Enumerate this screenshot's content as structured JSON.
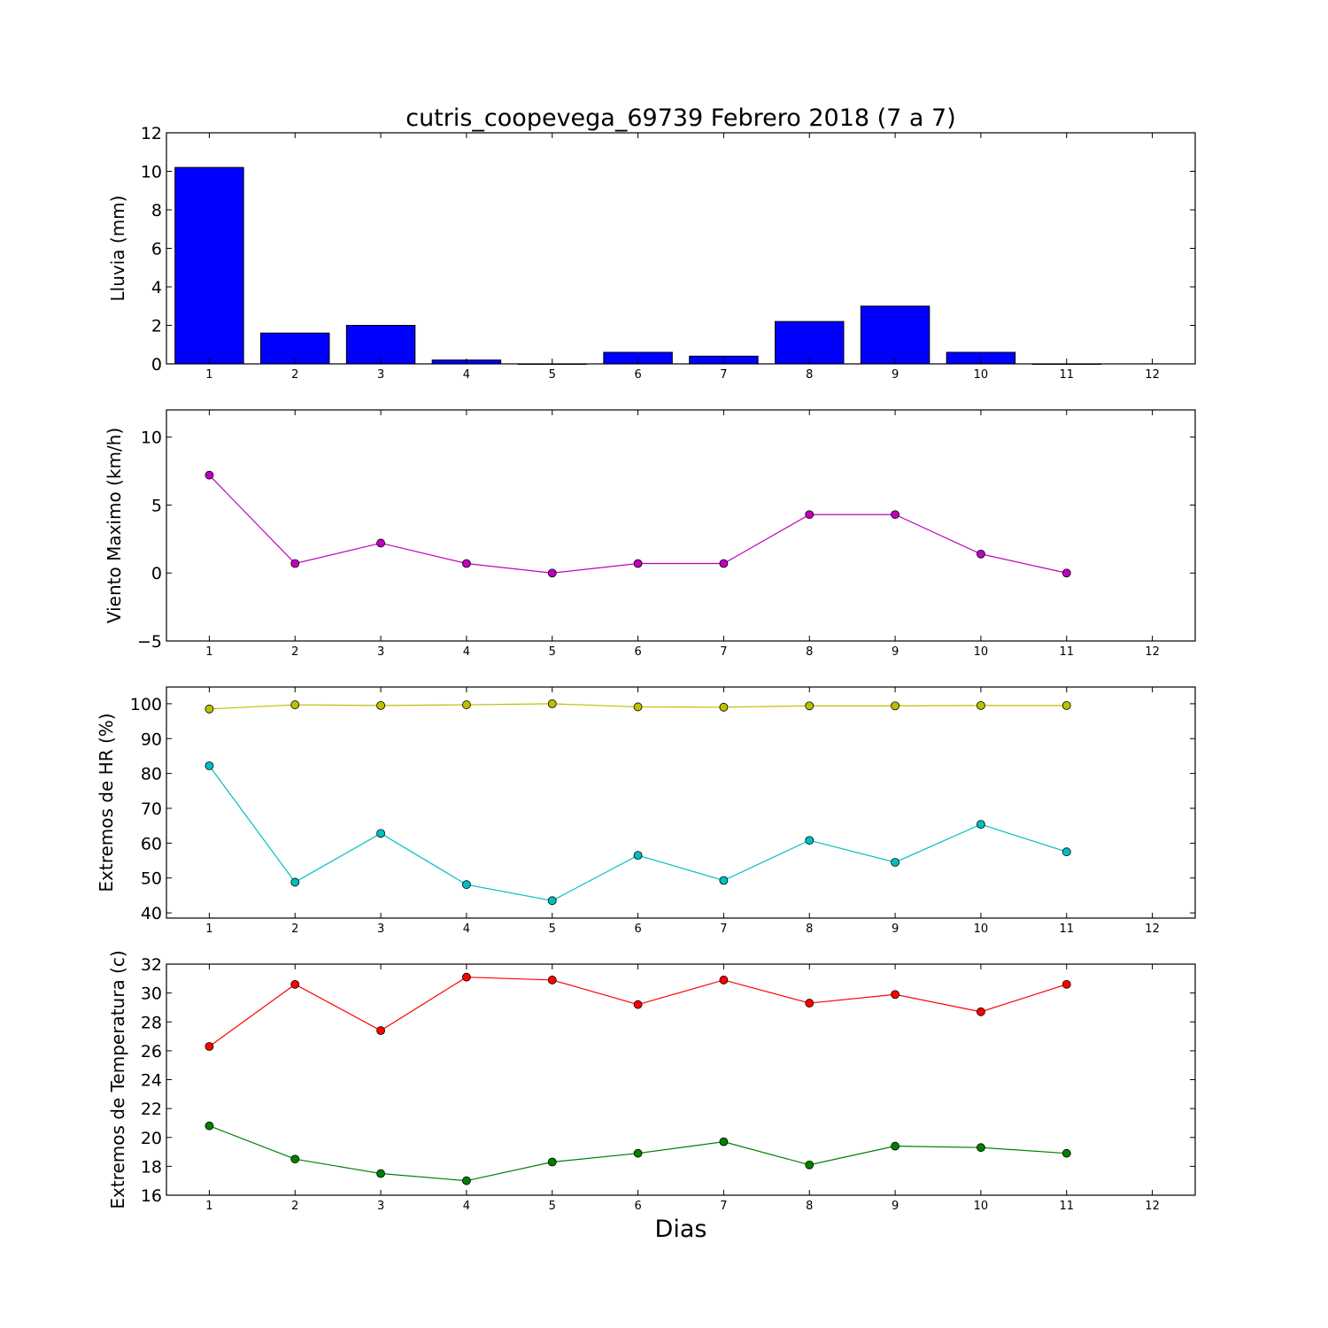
{
  "figure": {
    "title": "cutris_coopevega_69739 Febrero 2018  (7 a 7)",
    "xlabel": "Dias"
  },
  "chart_data": [
    {
      "type": "bar",
      "ylabel": "Lluvia (mm)",
      "xlim": [
        0.5,
        12.5
      ],
      "ylim": [
        0,
        12
      ],
      "yticks": [
        0,
        2,
        4,
        6,
        8,
        10,
        12
      ],
      "xticks": [
        1,
        2,
        3,
        4,
        5,
        6,
        7,
        8,
        9,
        10,
        11,
        12
      ],
      "grid": false,
      "series": [
        {
          "color": "#0000ff",
          "x": [
            1,
            2,
            3,
            4,
            5,
            6,
            7,
            8,
            9,
            10,
            11
          ],
          "values": [
            10.2,
            1.6,
            2.0,
            0.2,
            0.0,
            0.6,
            0.4,
            2.2,
            3.0,
            0.6,
            0.0
          ]
        }
      ]
    },
    {
      "type": "line",
      "ylabel": "Viento Maximo (km/h)",
      "xlim": [
        0.5,
        12.5
      ],
      "ylim": [
        -5,
        12
      ],
      "yticks": [
        -5,
        0,
        5,
        10
      ],
      "xticks": [
        1,
        2,
        3,
        4,
        5,
        6,
        7,
        8,
        9,
        10,
        11,
        12
      ],
      "grid": false,
      "series": [
        {
          "color": "#bf00bf",
          "x": [
            1,
            2,
            3,
            4,
            5,
            6,
            7,
            8,
            9,
            10,
            11
          ],
          "values": [
            7.2,
            0.7,
            2.2,
            0.7,
            0.0,
            0.7,
            0.7,
            4.3,
            4.3,
            1.4,
            0.0
          ]
        }
      ]
    },
    {
      "type": "line",
      "ylabel": "Extremos de HR (%)",
      "xlim": [
        0.5,
        12.5
      ],
      "ylim": [
        38.5,
        104.8
      ],
      "yticks": [
        40,
        50,
        60,
        70,
        80,
        90,
        100
      ],
      "xticks": [
        1,
        2,
        3,
        4,
        5,
        6,
        7,
        8,
        9,
        10,
        11,
        12
      ],
      "grid": false,
      "series": [
        {
          "color": "#bfbf00",
          "x": [
            1,
            2,
            3,
            4,
            5,
            6,
            7,
            8,
            9,
            10,
            11
          ],
          "values": [
            98.5,
            99.7,
            99.5,
            99.7,
            100.0,
            99.1,
            99.0,
            99.4,
            99.4,
            99.5,
            99.5
          ]
        },
        {
          "color": "#00bfbf",
          "x": [
            1,
            2,
            3,
            4,
            5,
            6,
            7,
            8,
            9,
            10,
            11
          ],
          "values": [
            82.2,
            48.8,
            62.8,
            48.1,
            43.5,
            56.5,
            49.3,
            60.8,
            54.5,
            65.4,
            57.5
          ]
        }
      ]
    },
    {
      "type": "line",
      "ylabel": "Extremos de Temperatura (c)",
      "xlim": [
        0.5,
        12.5
      ],
      "ylim": [
        16,
        32
      ],
      "yticks": [
        16,
        18,
        20,
        22,
        24,
        26,
        28,
        30,
        32
      ],
      "xticks": [
        1,
        2,
        3,
        4,
        5,
        6,
        7,
        8,
        9,
        10,
        11,
        12
      ],
      "grid": false,
      "series": [
        {
          "color": "#ff0000",
          "x": [
            1,
            2,
            3,
            4,
            5,
            6,
            7,
            8,
            9,
            10,
            11
          ],
          "values": [
            26.3,
            30.6,
            27.4,
            31.1,
            30.9,
            29.2,
            30.9,
            29.3,
            29.9,
            28.7,
            30.6
          ]
        },
        {
          "color": "#007f00",
          "x": [
            1,
            2,
            3,
            4,
            5,
            6,
            7,
            8,
            9,
            10,
            11
          ],
          "values": [
            20.8,
            18.5,
            17.5,
            17.0,
            18.3,
            18.9,
            19.7,
            18.1,
            19.4,
            19.3,
            18.9
          ]
        }
      ]
    }
  ]
}
